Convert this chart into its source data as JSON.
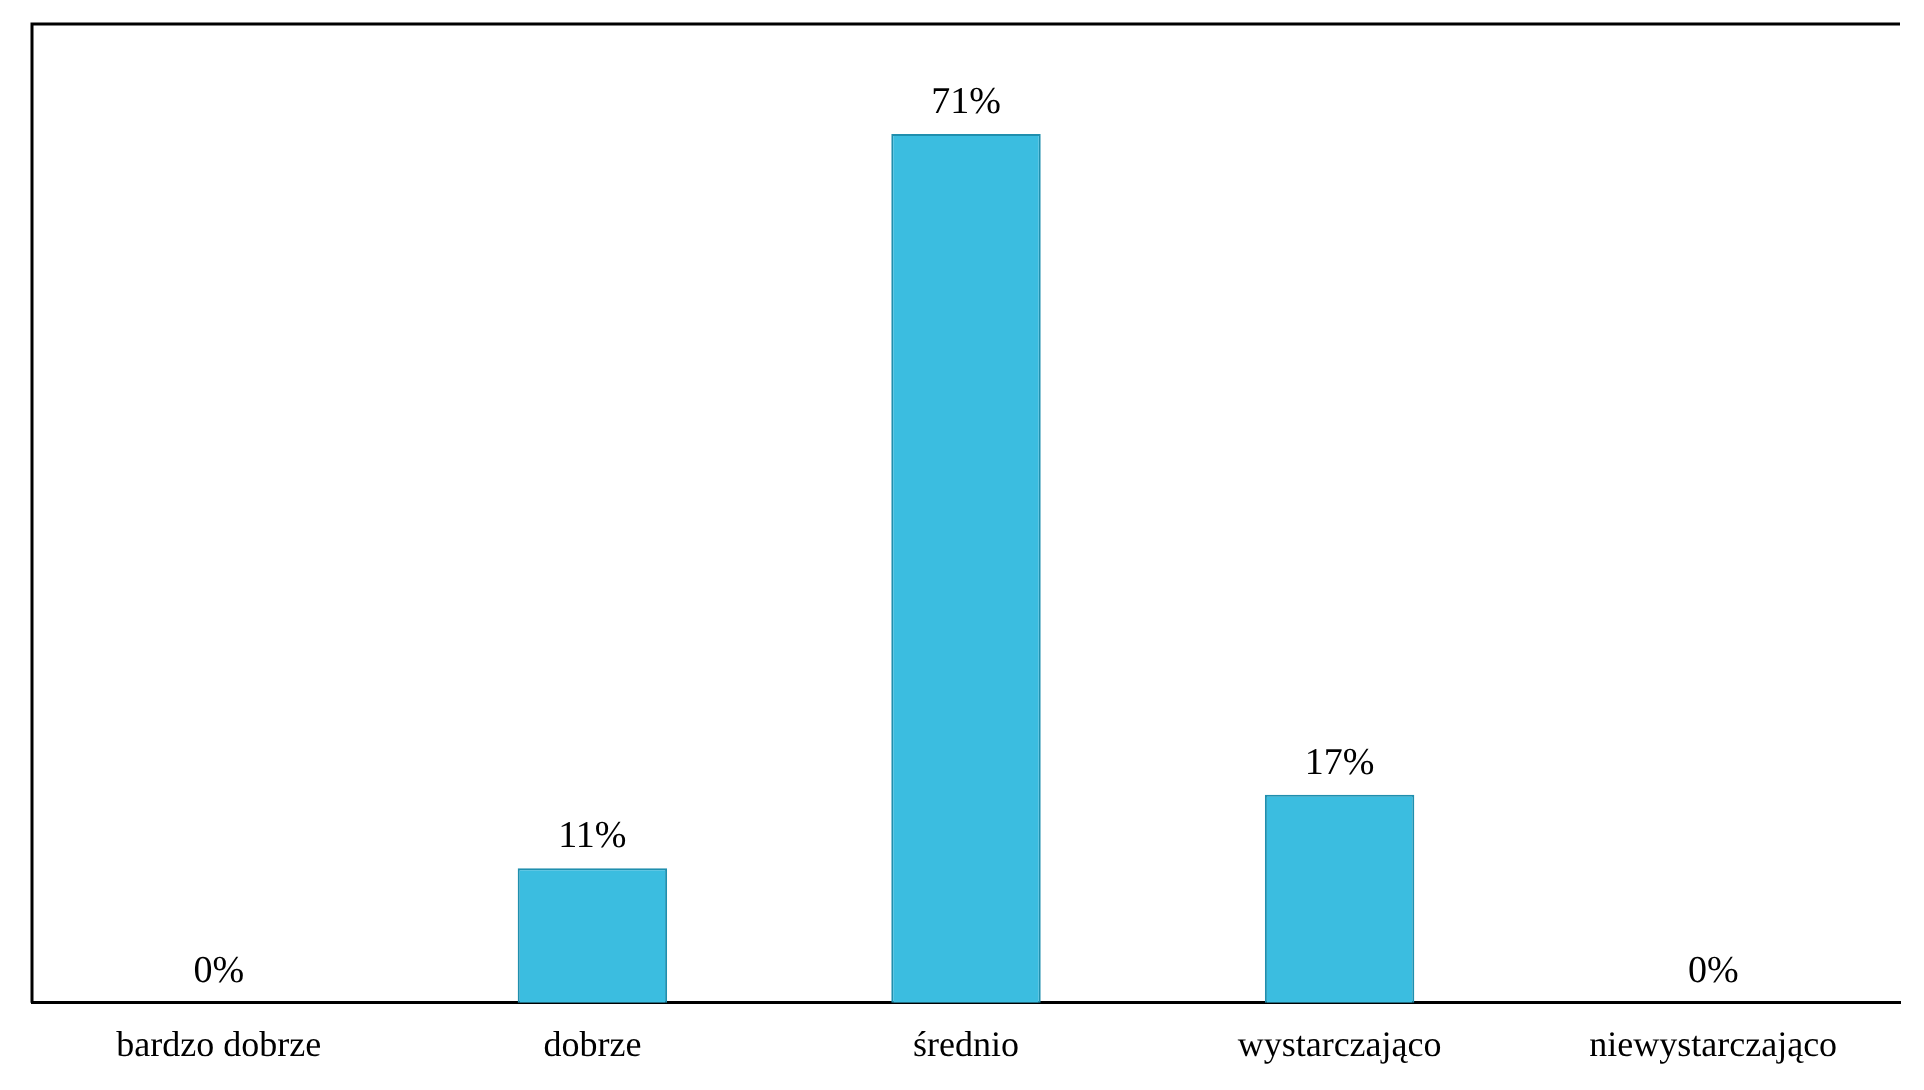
{
  "chart_data": {
    "type": "bar",
    "categories": [
      "bardzo dobrze",
      "dobrze",
      "średnio",
      "wystarczająco",
      "niewystarczająco"
    ],
    "values": [
      0,
      11,
      71,
      17,
      0
    ],
    "value_labels": [
      "0%",
      "11%",
      "71%",
      "17%",
      "0%"
    ],
    "color": "#3bbde0",
    "grid": false,
    "legend": false
  }
}
